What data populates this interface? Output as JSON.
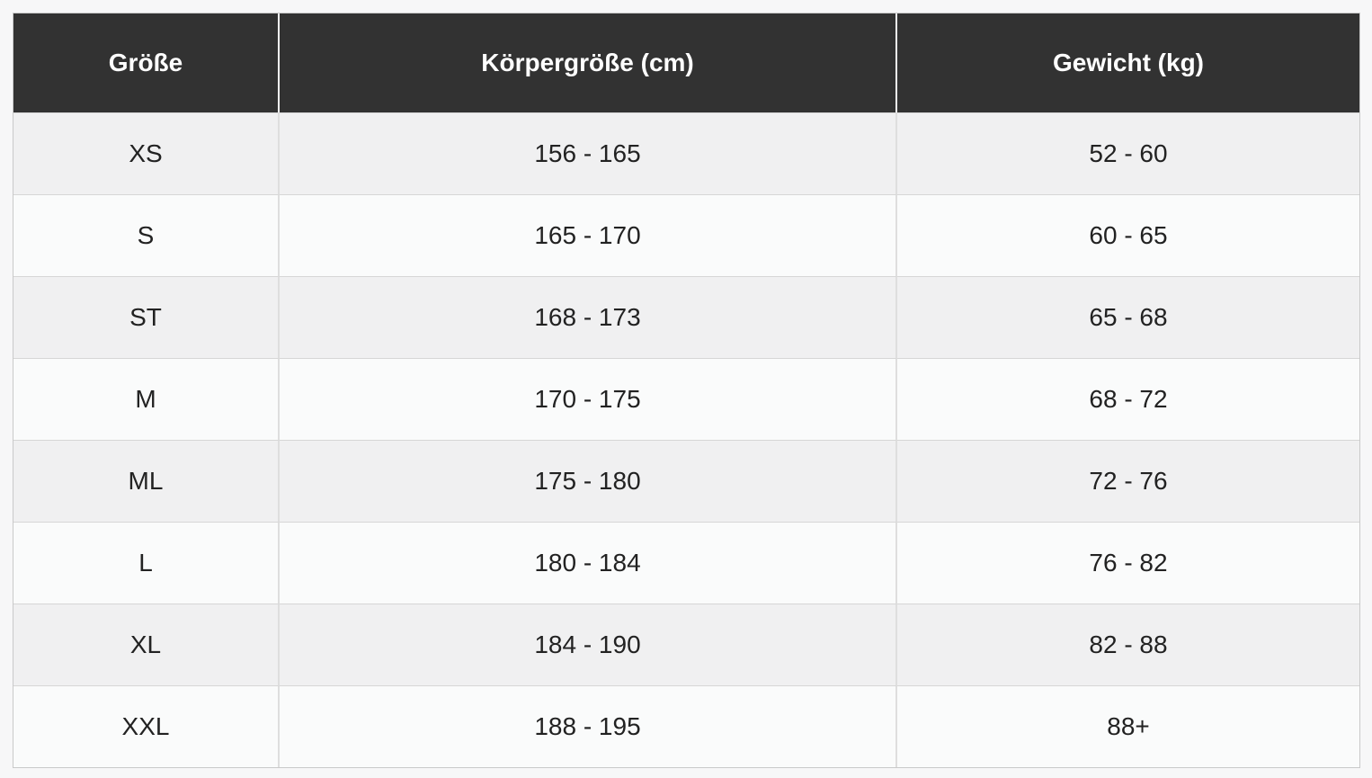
{
  "colors": {
    "page_background": "#f7f7f8",
    "header_background": "#323232",
    "header_text": "#ffffff",
    "row_odd_background": "#f0f0f1",
    "row_even_background": "#fafbfb",
    "cell_text": "#222222",
    "border": "#d6d6d6"
  },
  "table": {
    "columns": [
      {
        "key": "size",
        "label": "Größe"
      },
      {
        "key": "height",
        "label": "Körpergröße (cm)"
      },
      {
        "key": "weight",
        "label": "Gewicht (kg)"
      }
    ],
    "rows": [
      {
        "size": "XS",
        "height": "156 - 165",
        "weight": "52 - 60"
      },
      {
        "size": "S",
        "height": "165 - 170",
        "weight": "60 - 65"
      },
      {
        "size": "ST",
        "height": "168 - 173",
        "weight": "65 - 68"
      },
      {
        "size": "M",
        "height": "170 - 175",
        "weight": "68 - 72"
      },
      {
        "size": "ML",
        "height": "175 - 180",
        "weight": "72 - 76"
      },
      {
        "size": "L",
        "height": "180 - 184",
        "weight": "76 - 82"
      },
      {
        "size": "XL",
        "height": "184 - 190",
        "weight": "82 - 88"
      },
      {
        "size": "XXL",
        "height": "188 - 195",
        "weight": "88+"
      }
    ]
  }
}
